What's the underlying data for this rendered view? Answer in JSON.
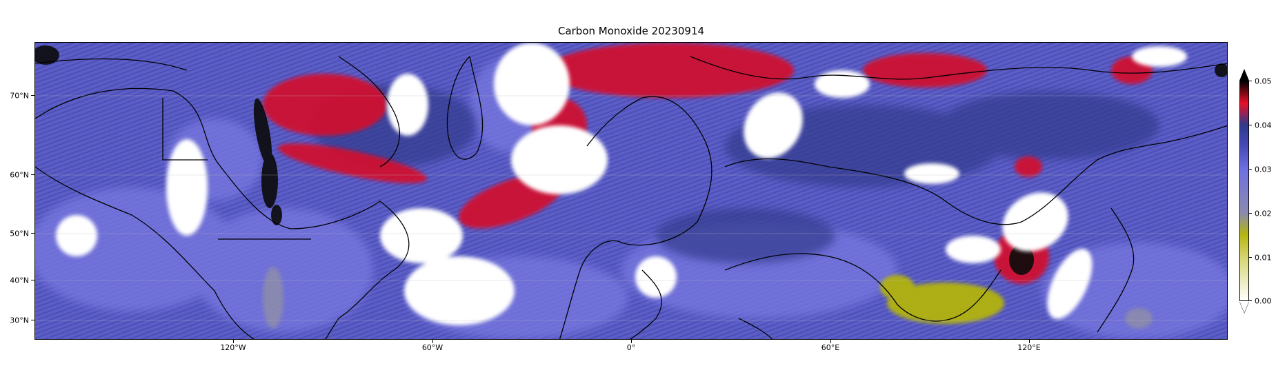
{
  "title": "Carbon Monoxide 20230914",
  "map": {
    "projection": "equirectangular",
    "lon_range": [
      -170,
      130
    ],
    "lat_range": [
      25,
      79
    ],
    "lat_ticks": [
      {
        "value": 70,
        "label": "70°N"
      },
      {
        "value": 60,
        "label": "60°N"
      },
      {
        "value": 50,
        "label": "50°N"
      },
      {
        "value": 40,
        "label": "40°N"
      },
      {
        "value": 30,
        "label": "30°N"
      }
    ],
    "lon_ticks": [
      {
        "value": -120,
        "label": "120°W"
      },
      {
        "value": -60,
        "label": "60°W"
      },
      {
        "value": 0,
        "label": "0°"
      },
      {
        "value": 60,
        "label": "60°E"
      },
      {
        "value": 120,
        "label": "120°E"
      }
    ],
    "regions": [
      {
        "name": "northern-canada-wildfire-plume",
        "level": "high"
      },
      {
        "name": "north-atlantic-plume",
        "level": "high"
      },
      {
        "name": "arctic-siberia",
        "level": "high"
      },
      {
        "name": "east-china",
        "level": "high"
      },
      {
        "name": "tibetan-plateau",
        "level": "low"
      }
    ]
  },
  "colorbar": {
    "min": 0.0,
    "max": 0.05,
    "extend": "both",
    "ticks": [
      "0.05",
      "0.04",
      "0.03",
      "0.02",
      "0.01",
      "0.00"
    ],
    "colors": {
      "0.00": "#ffffff",
      "0.01": "#d4d470",
      "0.015": "#b5b510",
      "0.02": "#8a8ab0",
      "0.03": "#6f70e0",
      "0.035": "#4a4ab8",
      "0.04": "#2e3a8c",
      "0.045": "#e8102a",
      "0.05": "#000000"
    }
  }
}
